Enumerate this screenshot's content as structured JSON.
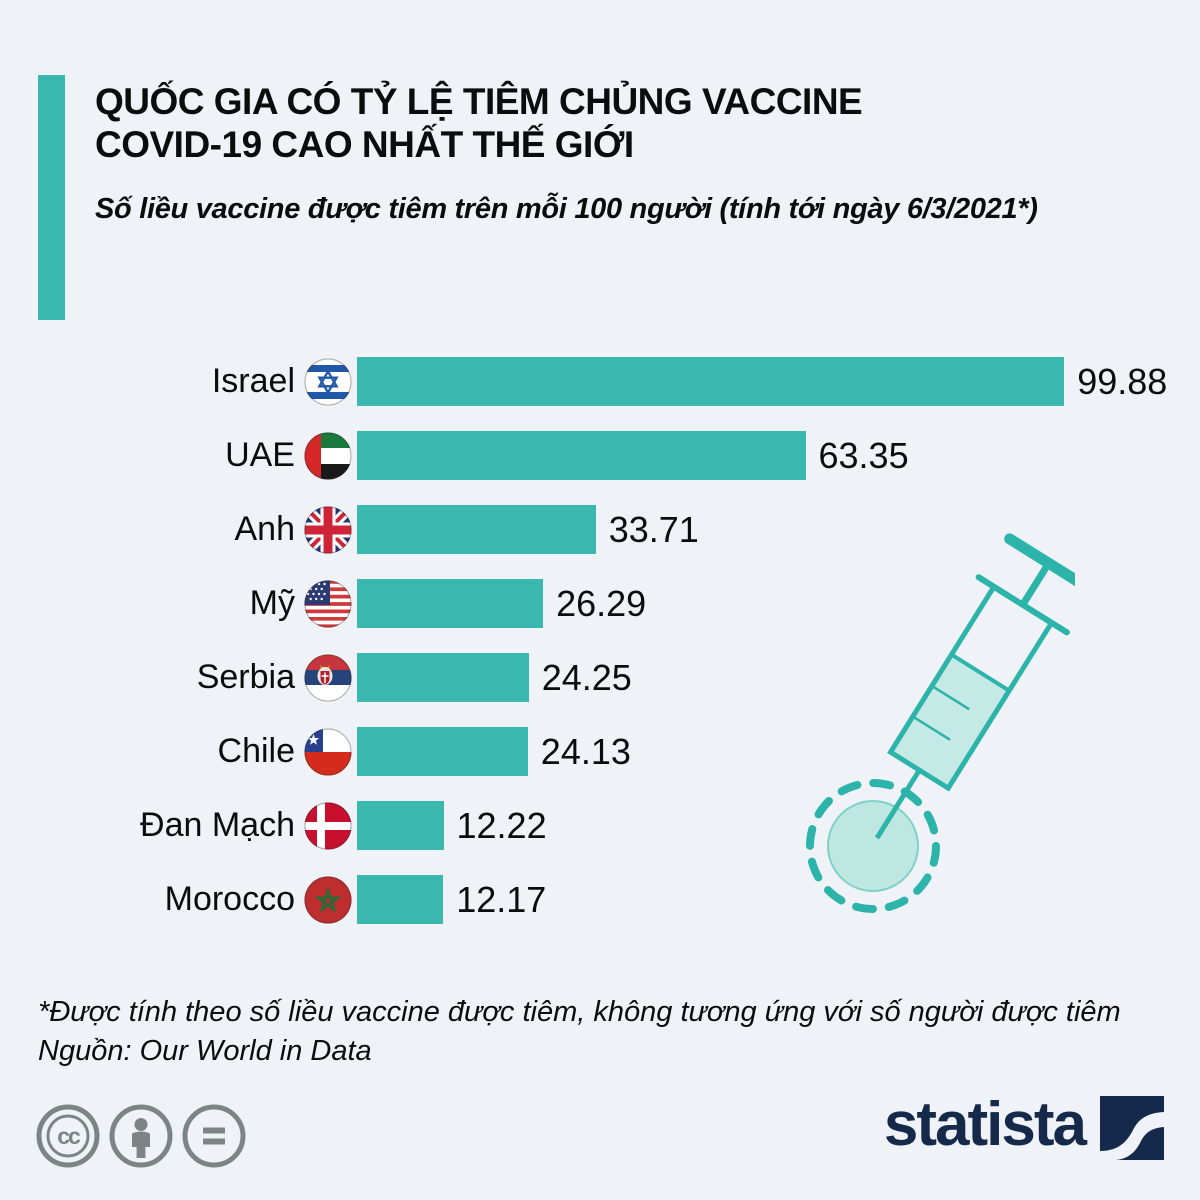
{
  "background_color": "#eff3f8",
  "accent_color": "#3ab7af",
  "text_color": "#0b0c0d",
  "header": {
    "title_line1": "QUỐC GIA CÓ TỶ LỆ TIÊM CHỦNG VACCINE",
    "title_line2": "COVID-19 CAO NHẤT THẾ GIỚI",
    "subtitle": "Số liều vaccine được tiêm trên mỗi 100 người (tính tới ngày 6/3/2021*)"
  },
  "chart_data": {
    "type": "bar",
    "orientation": "horizontal",
    "title": "QUỐC GIA CÓ TỶ LỆ TIÊM CHỦNG VACCINE COVID-19 CAO NHẤT THẾ GIỚI",
    "subtitle": "Số liều vaccine được tiêm trên mỗi 100 người (tính tới ngày 6/3/2021*)",
    "categories": [
      "Israel",
      "UAE",
      "Anh",
      "Mỹ",
      "Serbia",
      "Chile",
      "Đan Mạch",
      "Morocco"
    ],
    "values": [
      99.88,
      63.35,
      33.71,
      26.29,
      24.25,
      24.13,
      12.22,
      12.17
    ],
    "value_labels": [
      "99.88",
      "63.35",
      "33.71",
      "26.29",
      "24.25",
      "24.13",
      "12.22",
      "12.17"
    ],
    "flags": [
      "israel",
      "uae",
      "uk",
      "usa",
      "serbia",
      "chile",
      "denmark",
      "morocco"
    ],
    "bar_color": "#3ab7af",
    "xlim": [
      0,
      100
    ],
    "grid": false,
    "legend": "none"
  },
  "illustration": {
    "name": "syringe-injecting-virus",
    "stroke_color": "#2cb3aa",
    "fill_color": "#c5eae5"
  },
  "footer": {
    "note": "*Được tính theo số liều vaccine được tiêm, không tương ứng với số người được tiêm",
    "source": "Nguồn: Our World in Data"
  },
  "branding": {
    "logo_text": "statista",
    "logo_color": "#15294a",
    "license_icons": [
      "cc",
      "by",
      "nd"
    ],
    "license_icon_color": "#7c8485"
  }
}
